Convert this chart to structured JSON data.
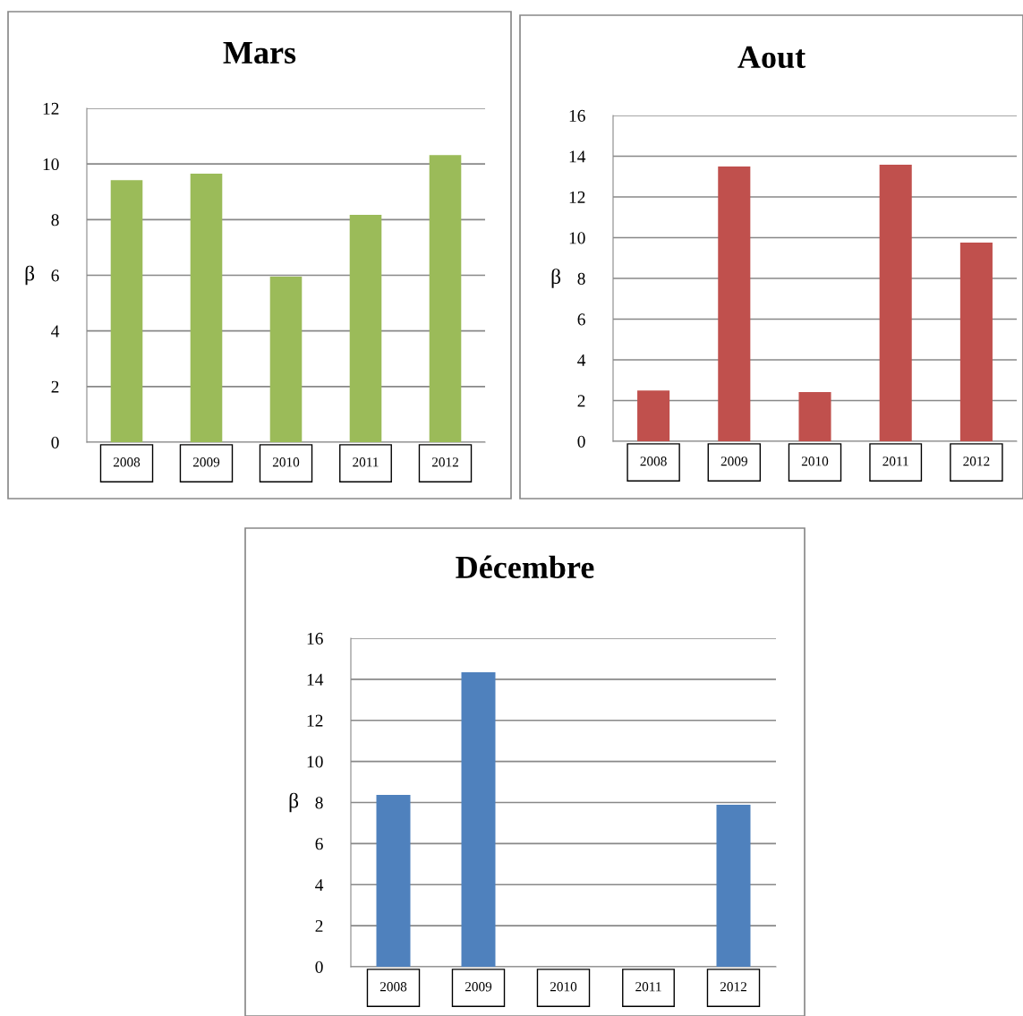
{
  "chart_data": [
    {
      "type": "bar",
      "title": "Mars",
      "ylabel": "β",
      "categories": [
        "2008",
        "2009",
        "2010",
        "2011",
        "2012"
      ],
      "values": [
        9.42,
        9.65,
        5.95,
        8.17,
        10.32
      ],
      "color": "#9bbb59",
      "ylim": [
        0,
        12
      ],
      "yticks": [
        0,
        2,
        4,
        6,
        8,
        10,
        12
      ],
      "grid": "y",
      "legend": false
    },
    {
      "type": "bar",
      "title": "Aout",
      "ylabel": "β",
      "categories": [
        "2008",
        "2009",
        "2010",
        "2011",
        "2012"
      ],
      "values": [
        2.5,
        13.5,
        2.42,
        13.58,
        9.76
      ],
      "color": "#c0504d",
      "ylim": [
        0,
        16
      ],
      "yticks": [
        0,
        2,
        4,
        6,
        8,
        10,
        12,
        14,
        16
      ],
      "grid": "y",
      "legend": false
    },
    {
      "type": "bar",
      "title": "Décembre",
      "ylabel": "β",
      "categories": [
        "2008",
        "2009",
        "2010",
        "2011",
        "2012"
      ],
      "values": [
        8.37,
        14.34,
        0,
        0,
        7.89
      ],
      "color": "#4f81bd",
      "ylim": [
        0,
        16
      ],
      "yticks": [
        0,
        2,
        4,
        6,
        8,
        10,
        12,
        14,
        16
      ],
      "grid": "y",
      "legend": false
    }
  ]
}
